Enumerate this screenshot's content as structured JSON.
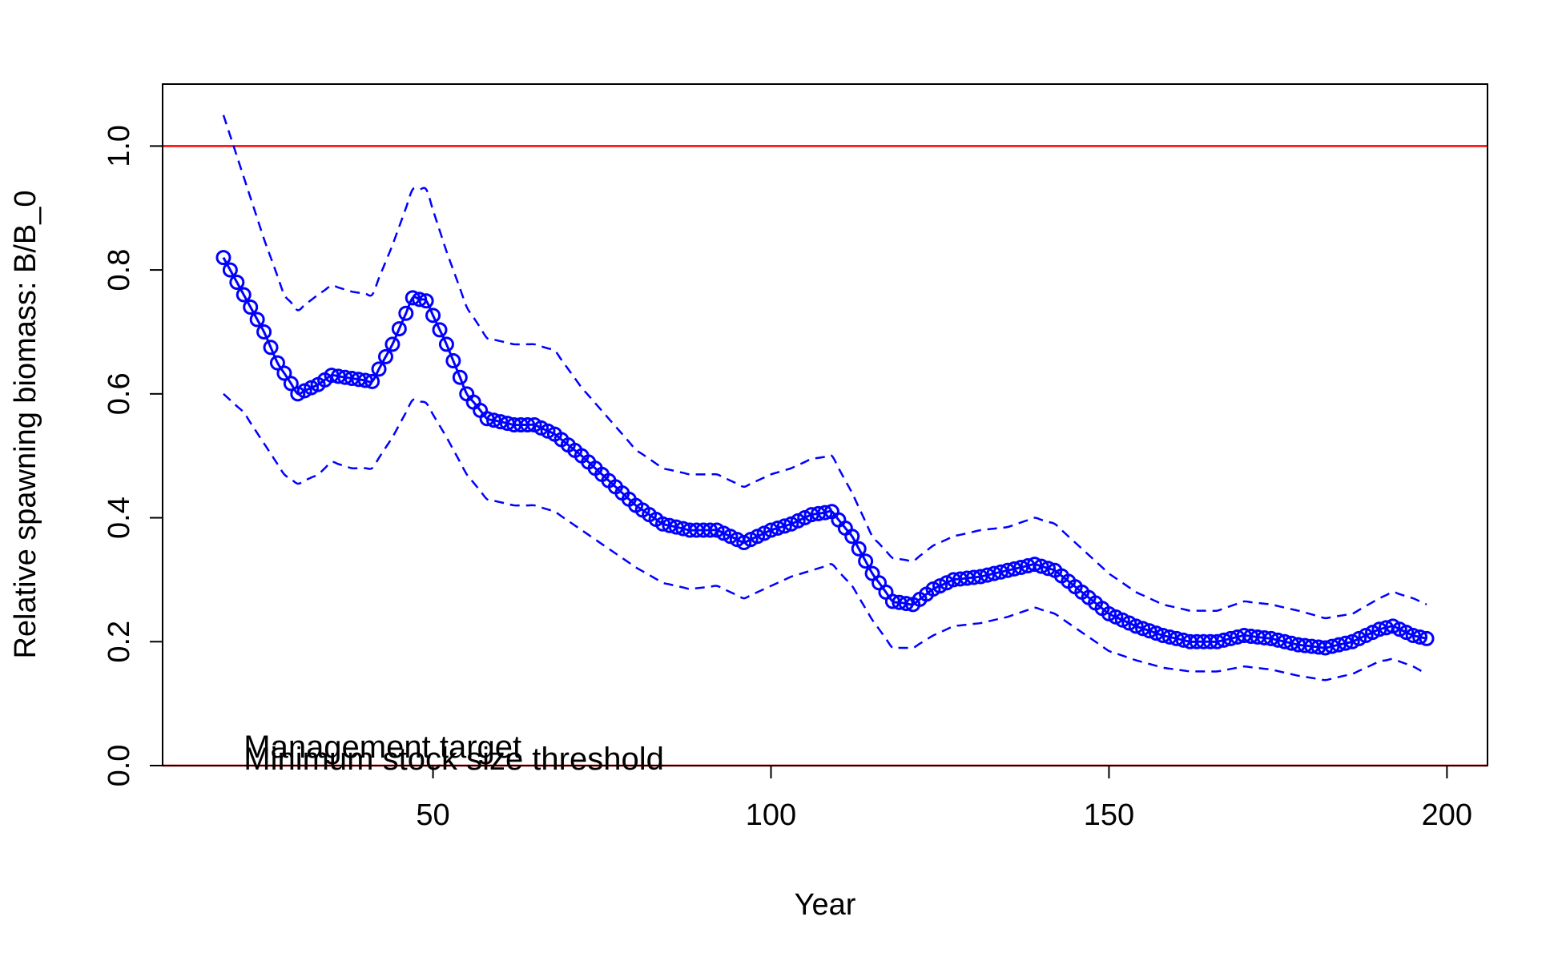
{
  "chart_data": {
    "type": "line",
    "title": "",
    "xlabel": "Year",
    "ylabel": "Relative spawning biomass: B/B_0",
    "xlim": [
      10,
      206
    ],
    "ylim": [
      0,
      1.1
    ],
    "x_ticks": [
      50,
      100,
      150,
      200
    ],
    "y_ticks": [
      0.0,
      0.2,
      0.4,
      0.6,
      0.8,
      1.0
    ],
    "x_tick_labels": [
      "50",
      "100",
      "150",
      "200"
    ],
    "y_tick_labels": [
      "0.0",
      "0.2",
      "0.4",
      "0.6",
      "0.8",
      "1.0"
    ],
    "grid": false,
    "reference_lines": [
      {
        "y": 1.0,
        "color": "#ff0000"
      },
      {
        "y": 0.0,
        "color": "#ff0000"
      }
    ],
    "annotations": [
      {
        "text": "Management target",
        "x": 22,
        "y": 0.0
      },
      {
        "text": "Minimum stock size threshold",
        "x": 22,
        "y": 0.0
      }
    ],
    "colors": {
      "estimate": "#0000ff",
      "interval": "#0000ff",
      "reference": "#ff0000"
    },
    "series": [
      {
        "role": "estimate",
        "style": "line+circles",
        "knots": [
          [
            19,
            0.82
          ],
          [
            22,
            0.76
          ],
          [
            25,
            0.7
          ],
          [
            27,
            0.65
          ],
          [
            30,
            0.6
          ],
          [
            33,
            0.615
          ],
          [
            35,
            0.63
          ],
          [
            38,
            0.625
          ],
          [
            41,
            0.62
          ],
          [
            44,
            0.68
          ],
          [
            47,
            0.755
          ],
          [
            49,
            0.75
          ],
          [
            52,
            0.68
          ],
          [
            55,
            0.6
          ],
          [
            58,
            0.56
          ],
          [
            62,
            0.55
          ],
          [
            65,
            0.55
          ],
          [
            68,
            0.535
          ],
          [
            72,
            0.5
          ],
          [
            76,
            0.46
          ],
          [
            80,
            0.42
          ],
          [
            84,
            0.39
          ],
          [
            88,
            0.38
          ],
          [
            92,
            0.38
          ],
          [
            96,
            0.36
          ],
          [
            100,
            0.38
          ],
          [
            103,
            0.39
          ],
          [
            106,
            0.405
          ],
          [
            109,
            0.41
          ],
          [
            112,
            0.37
          ],
          [
            115,
            0.31
          ],
          [
            118,
            0.265
          ],
          [
            121,
            0.26
          ],
          [
            124,
            0.285
          ],
          [
            127,
            0.3
          ],
          [
            131,
            0.305
          ],
          [
            135,
            0.315
          ],
          [
            139,
            0.325
          ],
          [
            142,
            0.315
          ],
          [
            146,
            0.28
          ],
          [
            150,
            0.245
          ],
          [
            154,
            0.225
          ],
          [
            158,
            0.21
          ],
          [
            162,
            0.2
          ],
          [
            166,
            0.2
          ],
          [
            170,
            0.21
          ],
          [
            174,
            0.205
          ],
          [
            178,
            0.195
          ],
          [
            182,
            0.19
          ],
          [
            186,
            0.2
          ],
          [
            190,
            0.22
          ],
          [
            192,
            0.225
          ],
          [
            195,
            0.21
          ],
          [
            197,
            0.205
          ]
        ]
      },
      {
        "role": "upper-interval",
        "style": "dashed",
        "knots": [
          [
            19,
            1.05
          ],
          [
            22,
            0.95
          ],
          [
            25,
            0.85
          ],
          [
            28,
            0.76
          ],
          [
            30,
            0.735
          ],
          [
            33,
            0.76
          ],
          [
            35,
            0.775
          ],
          [
            38,
            0.765
          ],
          [
            41,
            0.76
          ],
          [
            44,
            0.84
          ],
          [
            47,
            0.93
          ],
          [
            49,
            0.93
          ],
          [
            52,
            0.83
          ],
          [
            55,
            0.74
          ],
          [
            58,
            0.69
          ],
          [
            62,
            0.68
          ],
          [
            65,
            0.68
          ],
          [
            68,
            0.67
          ],
          [
            72,
            0.61
          ],
          [
            76,
            0.56
          ],
          [
            80,
            0.51
          ],
          [
            84,
            0.48
          ],
          [
            88,
            0.47
          ],
          [
            92,
            0.47
          ],
          [
            96,
            0.45
          ],
          [
            100,
            0.47
          ],
          [
            103,
            0.48
          ],
          [
            106,
            0.495
          ],
          [
            109,
            0.5
          ],
          [
            112,
            0.44
          ],
          [
            115,
            0.37
          ],
          [
            118,
            0.335
          ],
          [
            121,
            0.33
          ],
          [
            124,
            0.355
          ],
          [
            127,
            0.37
          ],
          [
            131,
            0.38
          ],
          [
            135,
            0.385
          ],
          [
            139,
            0.4
          ],
          [
            142,
            0.39
          ],
          [
            146,
            0.35
          ],
          [
            150,
            0.31
          ],
          [
            154,
            0.28
          ],
          [
            158,
            0.26
          ],
          [
            162,
            0.25
          ],
          [
            166,
            0.25
          ],
          [
            170,
            0.265
          ],
          [
            174,
            0.26
          ],
          [
            178,
            0.25
          ],
          [
            182,
            0.238
          ],
          [
            186,
            0.245
          ],
          [
            190,
            0.27
          ],
          [
            192,
            0.28
          ],
          [
            195,
            0.27
          ],
          [
            197,
            0.26
          ]
        ]
      },
      {
        "role": "lower-interval",
        "style": "dashed",
        "knots": [
          [
            19,
            0.6
          ],
          [
            22,
            0.57
          ],
          [
            25,
            0.52
          ],
          [
            28,
            0.47
          ],
          [
            30,
            0.455
          ],
          [
            33,
            0.47
          ],
          [
            35,
            0.49
          ],
          [
            38,
            0.48
          ],
          [
            41,
            0.48
          ],
          [
            44,
            0.53
          ],
          [
            47,
            0.59
          ],
          [
            49,
            0.585
          ],
          [
            52,
            0.53
          ],
          [
            55,
            0.47
          ],
          [
            58,
            0.43
          ],
          [
            62,
            0.42
          ],
          [
            65,
            0.42
          ],
          [
            68,
            0.41
          ],
          [
            72,
            0.38
          ],
          [
            76,
            0.35
          ],
          [
            80,
            0.32
          ],
          [
            84,
            0.295
          ],
          [
            88,
            0.285
          ],
          [
            92,
            0.29
          ],
          [
            96,
            0.27
          ],
          [
            100,
            0.29
          ],
          [
            103,
            0.305
          ],
          [
            106,
            0.315
          ],
          [
            109,
            0.325
          ],
          [
            112,
            0.29
          ],
          [
            115,
            0.235
          ],
          [
            118,
            0.19
          ],
          [
            121,
            0.19
          ],
          [
            124,
            0.21
          ],
          [
            127,
            0.225
          ],
          [
            131,
            0.23
          ],
          [
            135,
            0.24
          ],
          [
            139,
            0.255
          ],
          [
            142,
            0.245
          ],
          [
            146,
            0.215
          ],
          [
            150,
            0.185
          ],
          [
            154,
            0.17
          ],
          [
            158,
            0.158
          ],
          [
            162,
            0.152
          ],
          [
            166,
            0.152
          ],
          [
            170,
            0.16
          ],
          [
            174,
            0.155
          ],
          [
            178,
            0.145
          ],
          [
            182,
            0.138
          ],
          [
            186,
            0.148
          ],
          [
            190,
            0.168
          ],
          [
            192,
            0.172
          ],
          [
            195,
            0.16
          ],
          [
            197,
            0.148
          ]
        ]
      }
    ]
  }
}
